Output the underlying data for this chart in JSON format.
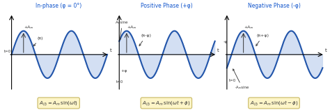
{
  "title1": "In-phase (φ = 0°)",
  "title2": "Positive Phase (+φ)",
  "title3": "Negative Phase (-φ)",
  "wave_color": "#2255aa",
  "fill_color": "#c8d8f0",
  "bg_color": "#ffffff",
  "formula_bg": "#fdf5c8",
  "formula_border": "#c8b860",
  "title_color": "#1155cc",
  "annotation_color": "#333333",
  "phi": 0.6
}
